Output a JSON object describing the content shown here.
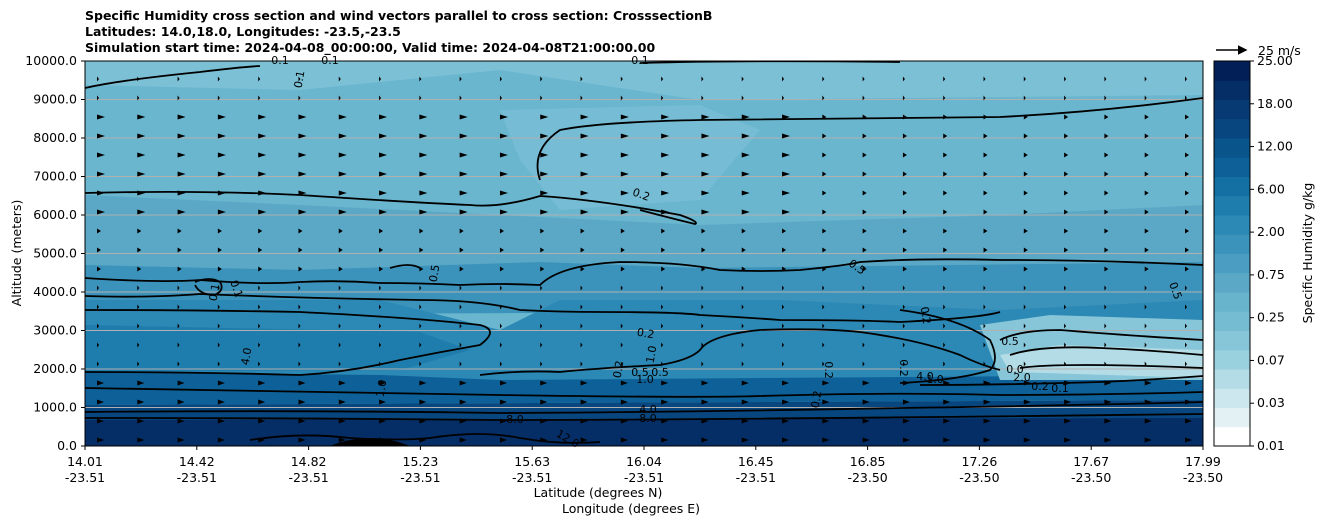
{
  "chart_data": {
    "type": "contour-cross-section",
    "title_lines": [
      "Specific Humidity cross section and wind vectors parallel to cross section: CrosssectionB",
      "Latitudes: 14.0,18.0, Longitudes: -23.5,-23.5",
      "Simulation start time: 2024-04-08_00:00:00, Valid time: 2024-04-08T21:00:00.00"
    ],
    "ylabel": "Altitude (meters)",
    "xlabel_lines": [
      "Latitude (degrees N)",
      "Longitude (degrees E)"
    ],
    "ylim": [
      0,
      10000
    ],
    "y_ticks": [
      "0.0",
      "1000.0",
      "2000.0",
      "3000.0",
      "4000.0",
      "5000.0",
      "6000.0",
      "7000.0",
      "8000.0",
      "9000.0",
      "10000.0"
    ],
    "x_ticks": [
      {
        "lat": "14.01",
        "lon": "-23.51"
      },
      {
        "lat": "14.42",
        "lon": "-23.51"
      },
      {
        "lat": "14.82",
        "lon": "-23.51"
      },
      {
        "lat": "15.23",
        "lon": "-23.51"
      },
      {
        "lat": "15.63",
        "lon": "-23.51"
      },
      {
        "lat": "16.04",
        "lon": "-23.51"
      },
      {
        "lat": "16.45",
        "lon": "-23.51"
      },
      {
        "lat": "16.85",
        "lon": "-23.50"
      },
      {
        "lat": "17.26",
        "lon": "-23.50"
      },
      {
        "lat": "17.67",
        "lon": "-23.50"
      },
      {
        "lat": "17.99",
        "lon": "-23.50"
      }
    ],
    "colorbar": {
      "label": "Specific Humidity g/kg",
      "ticks": [
        "0.01",
        "0.03",
        "0.07",
        "0.25",
        "0.75",
        "2.00",
        "6.00",
        "12.00",
        "18.00",
        "25.00"
      ],
      "colors": [
        "#ffffff",
        "#e3f1f5",
        "#cce7ee",
        "#b3dce6",
        "#99d1de",
        "#86c6d8",
        "#75bcd2",
        "#68b4cc",
        "#5aa8c6",
        "#4b9ec1",
        "#3b93bb",
        "#2c88b4",
        "#1f7dad",
        "#146fa3",
        "#0d6198",
        "#0a548c",
        "#08467f",
        "#073a73",
        "#052d66",
        "#031f58"
      ]
    },
    "wind_key_label": "25 m/s",
    "contour_labels": [
      "0.1",
      "0.1",
      "0.1",
      "0.1",
      "0.2",
      "0.5",
      "0.5",
      "0.5",
      "0.2",
      "1.0",
      "0.5",
      "0.5",
      "1.0",
      "0.2",
      "0.2",
      "0.2",
      "0.2",
      "4.0",
      "8.0",
      "4.0",
      "8.0",
      "12.0",
      "0.1",
      "0.1",
      "1.0",
      "4.0",
      "1.0",
      "0.5",
      "0.0",
      "2.0",
      "0.2",
      "0.2",
      "0.1"
    ]
  }
}
